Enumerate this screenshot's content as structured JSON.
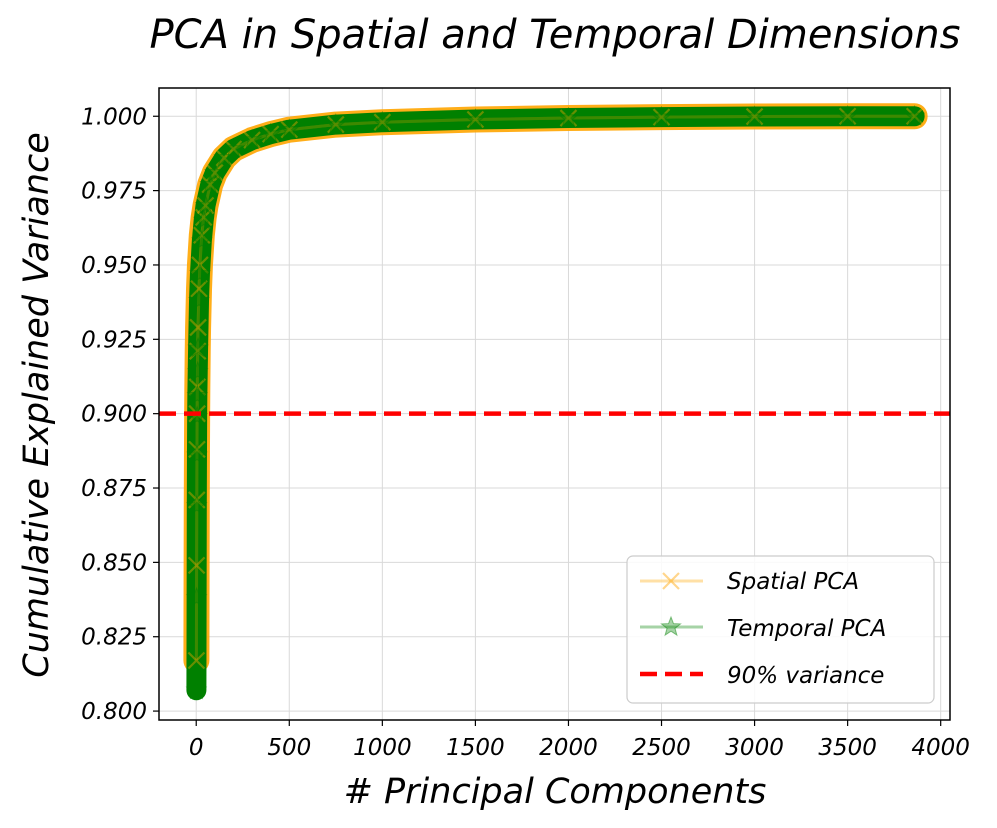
{
  "chart_data": {
    "type": "line",
    "title": "PCA in Spatial and Temporal Dimensions",
    "xlabel": "# Principal Components",
    "ylabel": "Cumulative Explained Variance",
    "xlim": [
      -200,
      4050
    ],
    "ylim": [
      0.797,
      1.0095
    ],
    "grid": true,
    "x_ticks": [
      0,
      500,
      1000,
      1500,
      2000,
      2500,
      3000,
      3500,
      4000
    ],
    "x_tick_labels": [
      "0",
      "500",
      "1000",
      "1500",
      "2000",
      "2500",
      "3000",
      "3500",
      "4000"
    ],
    "y_ticks": [
      0.8,
      0.825,
      0.85,
      0.875,
      0.9,
      0.925,
      0.95,
      0.975,
      1.0
    ],
    "y_tick_labels": [
      "0.800",
      "0.825",
      "0.850",
      "0.875",
      "0.900",
      "0.925",
      "0.950",
      "0.975",
      "1.000"
    ],
    "series": [
      {
        "name": "Spatial PCA",
        "color": "#ffa500",
        "marker": "x",
        "x": [
          1,
          2,
          3,
          4,
          5,
          6,
          8,
          10,
          15,
          20,
          30,
          40,
          50,
          75,
          100,
          150,
          200,
          300,
          400,
          500,
          750,
          1000,
          1500,
          2000,
          2500,
          3000,
          3500,
          3860
        ],
        "y": [
          0.817,
          0.849,
          0.871,
          0.888,
          0.9,
          0.909,
          0.921,
          0.929,
          0.942,
          0.95,
          0.96,
          0.966,
          0.97,
          0.977,
          0.981,
          0.986,
          0.989,
          0.992,
          0.994,
          0.9955,
          0.9972,
          0.998,
          0.9989,
          0.9994,
          0.9997,
          0.9999,
          1.0,
          1.0
        ]
      },
      {
        "name": "Temporal PCA",
        "color": "#008000",
        "marker": "*",
        "x": [
          1,
          2,
          3,
          4,
          5,
          6,
          8,
          10,
          15,
          20,
          30,
          40,
          50,
          75,
          100,
          150,
          200,
          300,
          400,
          500,
          750,
          1000,
          1500,
          2000,
          2500,
          3000,
          3500,
          3860
        ],
        "y": [
          0.807,
          0.838,
          0.869,
          0.886,
          0.899,
          0.906,
          0.914,
          0.922,
          0.938,
          0.947,
          0.958,
          0.965,
          0.97,
          0.977,
          0.981,
          0.986,
          0.989,
          0.992,
          0.994,
          0.9955,
          0.9972,
          0.998,
          0.9989,
          0.9994,
          0.9997,
          0.9999,
          1.0,
          1.0
        ]
      }
    ],
    "reference_line": {
      "name": "90% variance",
      "y": 0.9,
      "color": "#ff0000",
      "style": "dashed"
    },
    "legend": {
      "position": "bottom-right",
      "entries": [
        "Spatial PCA",
        "Temporal PCA",
        "90% variance"
      ]
    }
  }
}
